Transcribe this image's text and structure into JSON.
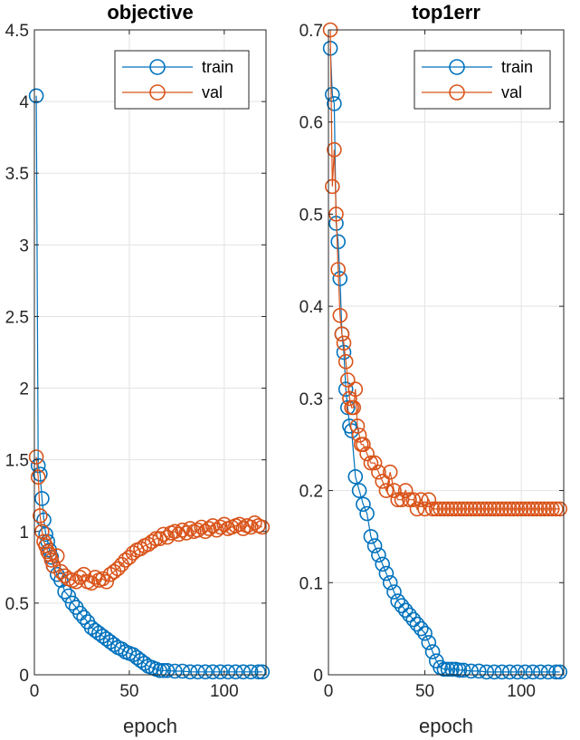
{
  "chart_data": [
    {
      "type": "line",
      "title": "objective",
      "xlabel": "epoch",
      "ylabel": "",
      "xlim": [
        0,
        122
      ],
      "ylim": [
        0,
        4.5
      ],
      "xticks": [
        0,
        50,
        100
      ],
      "yticks": [
        0,
        0.5,
        1,
        1.5,
        2,
        2.5,
        3,
        3.5,
        4,
        4.5
      ],
      "xtick_labels": [
        "0",
        "50",
        "100"
      ],
      "ytick_labels": [
        "0",
        "0.5",
        "1",
        "1.5",
        "2",
        "2.5",
        "3",
        "3.5",
        "4",
        "4.5"
      ],
      "grid": true,
      "legend_position": "top-right",
      "legend": [
        "train",
        "val"
      ],
      "marker": "circle",
      "series": [
        {
          "name": "train",
          "color": "#0072BD",
          "x": [
            1,
            2,
            3,
            4,
            5,
            6,
            7,
            8,
            9,
            10,
            12,
            14,
            16,
            18,
            20,
            22,
            24,
            26,
            28,
            30,
            32,
            34,
            36,
            38,
            40,
            42,
            44,
            46,
            48,
            50,
            52,
            54,
            56,
            58,
            60,
            62,
            64,
            66,
            68,
            70,
            74,
            78,
            82,
            86,
            90,
            94,
            98,
            102,
            106,
            110,
            114,
            118,
            120
          ],
          "y": [
            4.04,
            1.46,
            1.4,
            1.23,
            1.08,
            0.98,
            0.93,
            0.87,
            0.82,
            0.76,
            0.7,
            0.66,
            0.58,
            0.55,
            0.5,
            0.47,
            0.43,
            0.4,
            0.37,
            0.33,
            0.31,
            0.29,
            0.27,
            0.25,
            0.23,
            0.21,
            0.19,
            0.18,
            0.16,
            0.15,
            0.14,
            0.12,
            0.1,
            0.08,
            0.06,
            0.05,
            0.04,
            0.03,
            0.03,
            0.03,
            0.025,
            0.025,
            0.02,
            0.02,
            0.02,
            0.02,
            0.02,
            0.02,
            0.02,
            0.02,
            0.02,
            0.02,
            0.02
          ]
        },
        {
          "name": "val",
          "color": "#D95319",
          "x": [
            1,
            2,
            3,
            4,
            5,
            6,
            7,
            8,
            9,
            10,
            12,
            14,
            16,
            18,
            20,
            22,
            24,
            26,
            28,
            30,
            32,
            34,
            36,
            38,
            40,
            42,
            44,
            46,
            48,
            50,
            52,
            54,
            56,
            58,
            60,
            62,
            64,
            66,
            68,
            70,
            72,
            74,
            76,
            78,
            80,
            82,
            84,
            86,
            88,
            90,
            92,
            94,
            96,
            98,
            100,
            102,
            104,
            106,
            108,
            110,
            112,
            114,
            116,
            118,
            120
          ],
          "y": [
            1.52,
            1.38,
            1.11,
            1.0,
            0.93,
            0.9,
            0.86,
            0.84,
            0.8,
            0.76,
            0.83,
            0.72,
            0.69,
            0.67,
            0.66,
            0.65,
            0.68,
            0.7,
            0.65,
            0.64,
            0.68,
            0.66,
            0.67,
            0.65,
            0.7,
            0.72,
            0.74,
            0.77,
            0.8,
            0.82,
            0.85,
            0.87,
            0.88,
            0.9,
            0.91,
            0.93,
            0.95,
            0.95,
            0.98,
            0.96,
            0.99,
            1.0,
            0.98,
            1.01,
            0.99,
            1.02,
            1.0,
            1.01,
            1.03,
            1.0,
            1.02,
            1.04,
            1.01,
            1.03,
            1.05,
            1.02,
            1.03,
            1.04,
            1.05,
            1.02,
            1.04,
            1.03,
            1.06,
            1.04,
            1.03
          ]
        }
      ]
    },
    {
      "type": "line",
      "title": "top1err",
      "xlabel": "epoch",
      "ylabel": "",
      "xlim": [
        0,
        122
      ],
      "ylim": [
        0,
        0.7
      ],
      "xticks": [
        0,
        50,
        100
      ],
      "yticks": [
        0,
        0.1,
        0.2,
        0.3,
        0.4,
        0.5,
        0.6,
        0.7
      ],
      "xtick_labels": [
        "0",
        "50",
        "100"
      ],
      "ytick_labels": [
        "0",
        "0.1",
        "0.2",
        "0.3",
        "0.4",
        "0.5",
        "0.6",
        "0.7"
      ],
      "grid": true,
      "legend_position": "top-right",
      "legend": [
        "train",
        "val"
      ],
      "marker": "circle",
      "series": [
        {
          "name": "train",
          "color": "#0072BD",
          "x": [
            1,
            2,
            3,
            4,
            5,
            6,
            7,
            8,
            9,
            10,
            11,
            12,
            14,
            16,
            18,
            20,
            22,
            24,
            26,
            28,
            30,
            32,
            34,
            36,
            38,
            40,
            42,
            44,
            46,
            48,
            50,
            52,
            54,
            56,
            58,
            60,
            62,
            64,
            66,
            68,
            70,
            74,
            78,
            82,
            86,
            90,
            94,
            98,
            102,
            106,
            110,
            114,
            118,
            120
          ],
          "y": [
            0.68,
            0.63,
            0.62,
            0.49,
            0.47,
            0.43,
            0.37,
            0.35,
            0.31,
            0.29,
            0.27,
            0.265,
            0.215,
            0.2,
            0.185,
            0.175,
            0.15,
            0.14,
            0.13,
            0.12,
            0.11,
            0.1,
            0.09,
            0.08,
            0.075,
            0.07,
            0.065,
            0.06,
            0.055,
            0.05,
            0.045,
            0.035,
            0.025,
            0.015,
            0.008,
            0.006,
            0.006,
            0.006,
            0.006,
            0.005,
            0.005,
            0.004,
            0.004,
            0.003,
            0.003,
            0.003,
            0.003,
            0.003,
            0.003,
            0.003,
            0.003,
            0.003,
            0.003,
            0.003
          ]
        },
        {
          "name": "val",
          "color": "#D95319",
          "x": [
            1,
            2,
            3,
            4,
            5,
            6,
            7,
            8,
            9,
            10,
            11,
            12,
            13,
            14,
            15,
            16,
            17,
            18,
            20,
            22,
            24,
            26,
            28,
            30,
            32,
            34,
            36,
            38,
            40,
            42,
            44,
            46,
            48,
            50,
            52,
            54,
            56,
            58,
            60,
            62,
            64,
            66,
            68,
            70,
            72,
            74,
            76,
            78,
            80,
            82,
            84,
            86,
            88,
            90,
            92,
            94,
            96,
            98,
            100,
            102,
            104,
            106,
            108,
            110,
            112,
            114,
            116,
            118,
            120
          ],
          "y": [
            0.7,
            0.53,
            0.57,
            0.5,
            0.44,
            0.39,
            0.37,
            0.36,
            0.34,
            0.32,
            0.3,
            0.29,
            0.29,
            0.31,
            0.27,
            0.26,
            0.25,
            0.25,
            0.24,
            0.23,
            0.23,
            0.22,
            0.21,
            0.2,
            0.22,
            0.2,
            0.19,
            0.19,
            0.2,
            0.19,
            0.19,
            0.18,
            0.19,
            0.18,
            0.19,
            0.18,
            0.18,
            0.18,
            0.18,
            0.18,
            0.18,
            0.18,
            0.18,
            0.18,
            0.18,
            0.18,
            0.18,
            0.18,
            0.18,
            0.18,
            0.18,
            0.18,
            0.18,
            0.18,
            0.18,
            0.18,
            0.18,
            0.18,
            0.18,
            0.18,
            0.18,
            0.18,
            0.18,
            0.18,
            0.18,
            0.18,
            0.18,
            0.18,
            0.18
          ]
        }
      ]
    }
  ]
}
